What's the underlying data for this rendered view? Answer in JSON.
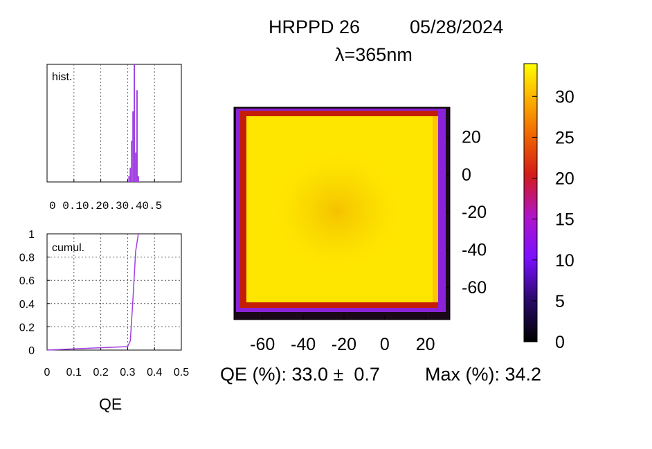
{
  "header": {
    "device": "HRPPD 26",
    "date": "05/28/2024",
    "wavelength": "λ=365nm"
  },
  "summary": {
    "qe_text": "QE (%): 33.0 ±  0.7",
    "max_text": "Max (%): 34.2"
  },
  "chart_data": [
    {
      "type": "heatmap",
      "title": "HRPPD 26    05/28/2024",
      "subtitle": "λ=365nm",
      "x_ticks": [
        "-60",
        "-40",
        "-20",
        "0",
        "20"
      ],
      "y_ticks": [
        "20",
        "0",
        "-20",
        "-40",
        "-60"
      ],
      "x_range": [
        -74,
        32
      ],
      "y_range": [
        -77,
        36
      ],
      "colorbar": {
        "ticks": [
          "0",
          "5",
          "10",
          "15",
          "20",
          "25",
          "30"
        ],
        "range": [
          0,
          34
        ]
      },
      "qe_mean_percent": 33.0,
      "qe_sigma_percent": 0.7,
      "qe_max_percent": 34.2,
      "colors": {
        "plateau": "#ffe600",
        "center_dip": "#f6c800",
        "edge_red": "#c41e08",
        "edge_purple": "#8a22d8",
        "edge_black": "#1a0818"
      }
    },
    {
      "type": "bar",
      "label": "hist.",
      "x_ticks": [
        "0",
        "0.1",
        "0.2",
        "0.3",
        "0.4",
        "0.5"
      ],
      "x_tick_text": "0 0.10.20.30.40.5",
      "x_range": [
        0,
        0.5
      ],
      "bins": [
        0.305,
        0.31,
        0.315,
        0.32,
        0.325,
        0.33,
        0.335,
        0.34
      ],
      "values": [
        0.05,
        0.12,
        0.35,
        0.6,
        1.0,
        0.25,
        0.78,
        0.05
      ],
      "color": "#a040e0"
    },
    {
      "type": "line",
      "label": "cumul.",
      "xlabel": "QE",
      "x_ticks": [
        "0",
        "0.1",
        "0.2",
        "0.3",
        "0.4",
        "0.5"
      ],
      "y_ticks": [
        "0",
        "0.2",
        "0.4",
        "0.6",
        "0.8",
        "1"
      ],
      "x_range": [
        0,
        0.5
      ],
      "y_range": [
        0,
        1
      ],
      "grid": true,
      "x": [
        0.0,
        0.1,
        0.2,
        0.3,
        0.31,
        0.32,
        0.33,
        0.34
      ],
      "y": [
        0.0,
        0.01,
        0.02,
        0.03,
        0.08,
        0.45,
        0.85,
        1.0
      ],
      "color": "#a040e0"
    }
  ]
}
